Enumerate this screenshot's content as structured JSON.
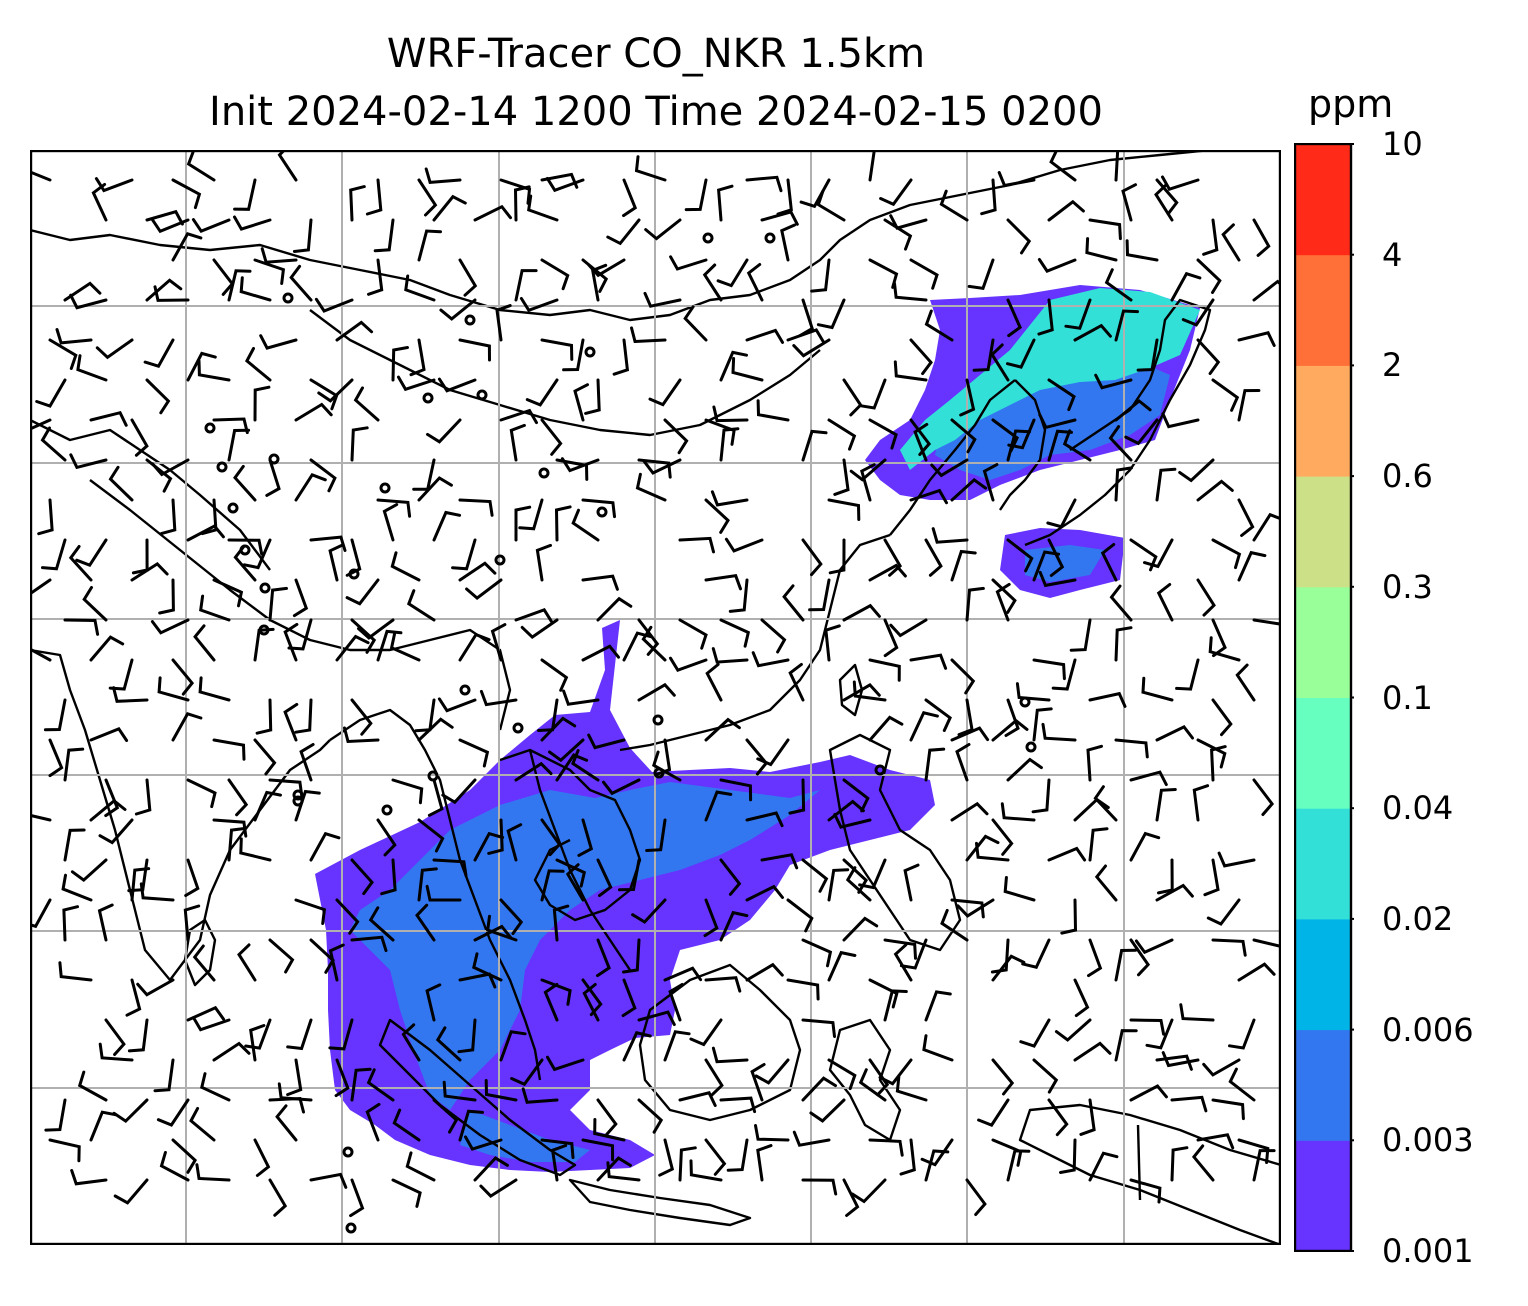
{
  "title": {
    "line1": "WRF-Tracer CO_NKR 1.5km",
    "line2": "Init 2024-02-14 1200 Time 2024-02-15 0200"
  },
  "colorbar": {
    "unit": "ppm",
    "levels": [
      "0.001",
      "0.003",
      "0.006",
      "0.02",
      "0.04",
      "0.1",
      "0.3",
      "0.6",
      "2",
      "4",
      "10"
    ],
    "colors": [
      "#6633ff",
      "#3377f0",
      "#00b4e8",
      "#33e0d8",
      "#66ffc0",
      "#99ff99",
      "#cce088",
      "#ffaa5e",
      "#ff7038",
      "#ff2a18"
    ]
  },
  "map": {
    "gridlines": true,
    "coastline_color": "#000000",
    "grid_color": "#b0b0b0",
    "plume_colors": {
      "low": "#6633ff",
      "mid": "#3377f0",
      "high": "#33e0d8"
    }
  }
}
